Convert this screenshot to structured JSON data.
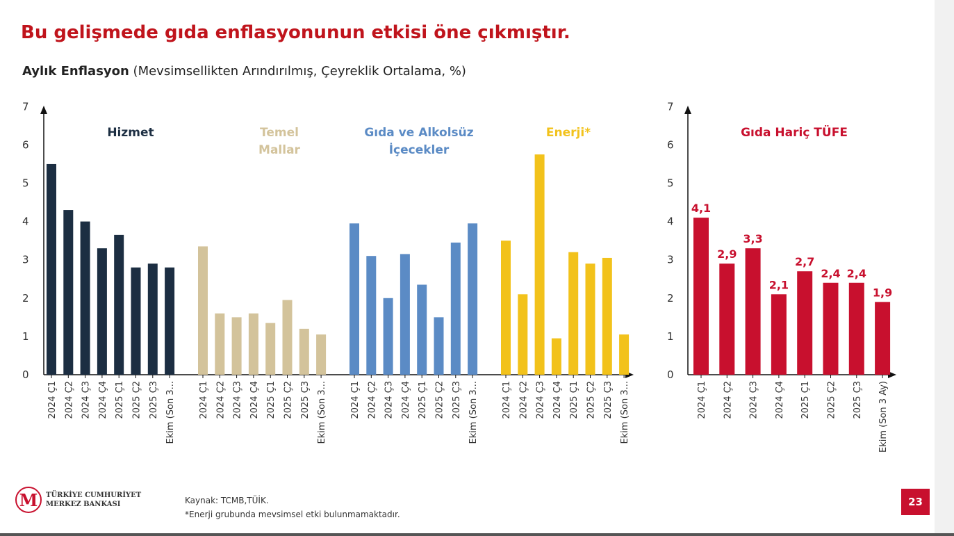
{
  "title": "Bu gelişmede gıda enflasyonunun etkisi öne çıkmıştır.",
  "subtitle_bold": "Aylık Enflasyon",
  "subtitle_rest": " (Mevsimsellikten Arındırılmış, Çeyreklik Ortalama, %)",
  "footer": {
    "logo_line1": "TÜRKİYE CUMHURİYET",
    "logo_line2": "MERKEZ BANKASI",
    "logo_mark": "TCMB",
    "source": "Kaynak: TCMB,TÜİK.",
    "note": "*Enerji grubunda mevsimsel etki bulunmamaktadır.",
    "page_number": "23"
  },
  "chart_data": [
    {
      "type": "bar",
      "ylim": [
        0,
        7
      ],
      "yticks": [
        "0",
        "1",
        "2",
        "3",
        "4",
        "5",
        "6",
        "7"
      ],
      "categories": [
        "2024 Ç1",
        "2024 Ç2",
        "2024 Ç3",
        "2024 Ç4",
        "2025 Ç1",
        "2025 Ç2",
        "2025 Ç3",
        "Ekim (Son 3..."
      ],
      "series": [
        {
          "name": "Hizmet",
          "color": "#1c2e42",
          "values": [
            5.5,
            4.3,
            4.0,
            3.3,
            3.65,
            2.8,
            2.9,
            2.8
          ]
        },
        {
          "name": "Temel Mallar",
          "color": "#d3c39b",
          "values": [
            3.35,
            1.6,
            1.5,
            1.6,
            1.35,
            1.95,
            1.2,
            1.05
          ]
        },
        {
          "name": "Gıda ve Alkolsüz İçecekler",
          "color": "#5b8bc5",
          "values": [
            3.95,
            3.1,
            2.0,
            3.15,
            2.35,
            1.5,
            3.45,
            3.95
          ]
        },
        {
          "name": "Enerji*",
          "color": "#f2c21b",
          "values": [
            3.5,
            2.1,
            5.75,
            0.95,
            3.2,
            2.9,
            3.05,
            1.05
          ]
        }
      ],
      "series_label_lines": [
        [
          "Hizmet"
        ],
        [
          "Temel",
          "Mallar"
        ],
        [
          "Gıda ve Alkolsüz",
          "İçecekler"
        ],
        [
          "Enerji*"
        ]
      ]
    },
    {
      "type": "bar",
      "title": "Gıda Hariç TÜFE",
      "ylim": [
        0,
        7
      ],
      "yticks": [
        "0",
        "1",
        "2",
        "3",
        "4",
        "5",
        "6",
        "7"
      ],
      "categories": [
        "2024 Ç1",
        "2024 Ç2",
        "2024 Ç3",
        "2024 Ç4",
        "2025 Ç1",
        "2025 Ç2",
        "2025 Ç3",
        "Ekim (Son 3 Ay)"
      ],
      "color": "#c8102e",
      "values": [
        4.1,
        2.9,
        3.3,
        2.1,
        2.7,
        2.4,
        2.4,
        1.9
      ],
      "data_labels": [
        "4,1",
        "2,9",
        "3,3",
        "2,1",
        "2,7",
        "2,4",
        "2,4",
        "1,9"
      ]
    }
  ]
}
